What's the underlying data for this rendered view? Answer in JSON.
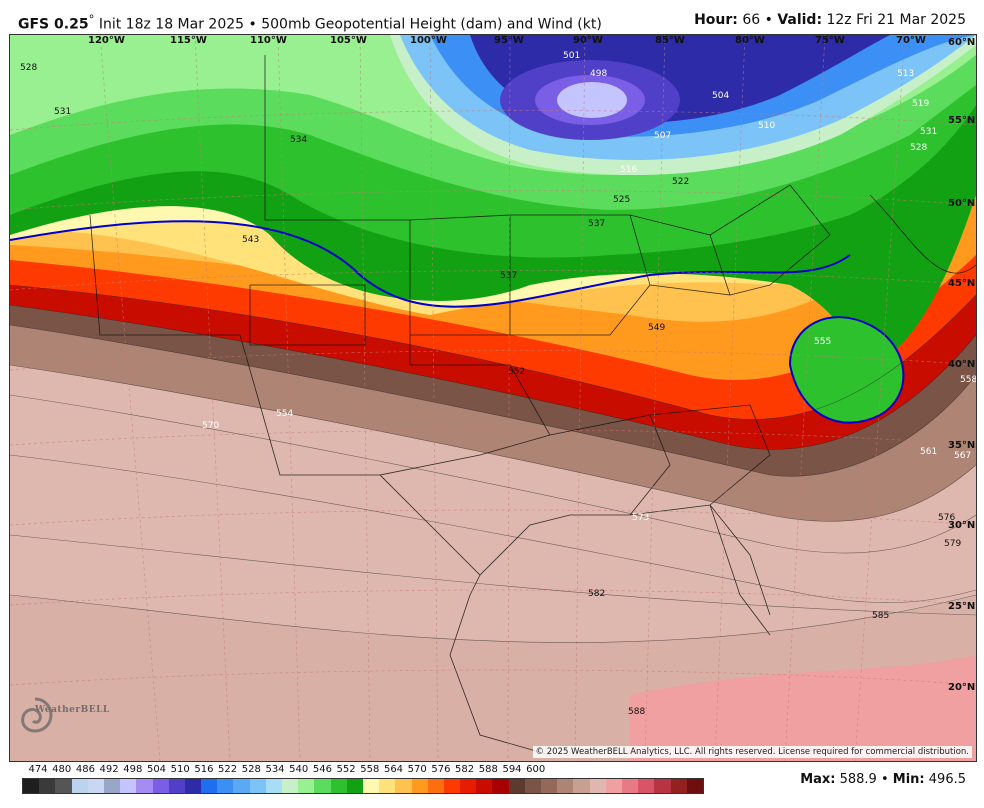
{
  "header": {
    "model": "GFS 0.25",
    "deg": "°",
    "init": " Init 18z 18 Mar 2025",
    "sep": " • ",
    "product": "500mb Geopotential Height (dam) and Wind (kt)",
    "hour_label": "Hour:",
    "hour": " 66",
    "valid_label": "Valid:",
    "valid": " 12z Fri 21 Mar 2025"
  },
  "map": {
    "longitudes": [
      "120°W",
      "115°W",
      "110°W",
      "105°W",
      "100°W",
      "95°W",
      "90°W",
      "85°W",
      "80°W",
      "75°W",
      "70°W"
    ],
    "latitudes": [
      "60°N",
      "55°N",
      "50°N",
      "45°N",
      "40°N",
      "35°N",
      "30°N",
      "25°N",
      "20°N"
    ],
    "contour_labels": [
      "528",
      "531",
      "534",
      "543",
      "537",
      "537",
      "549",
      "552",
      "554",
      "570",
      "501",
      "498",
      "504",
      "507",
      "510",
      "513",
      "516",
      "519",
      "522",
      "525",
      "528",
      "531",
      "555",
      "558",
      "561",
      "567",
      "573",
      "576",
      "579",
      "582",
      "585",
      "588"
    ],
    "copyright": "© 2025 WeatherBELL Analytics, LLC. All rights reserved. License required for commercial distribution.",
    "logo": "WeatherBELL"
  },
  "colorbar": {
    "ticks": [
      "474",
      "480",
      "486",
      "492",
      "498",
      "504",
      "510",
      "516",
      "522",
      "528",
      "534",
      "540",
      "546",
      "552",
      "558",
      "564",
      "570",
      "576",
      "582",
      "588",
      "594",
      "600"
    ],
    "colors": [
      "#1e1e1e",
      "#3a3a3a",
      "#555555",
      "#bcd3ef",
      "#c9d8f2",
      "#9aa6c8",
      "#c4c4ff",
      "#a48cf2",
      "#7a5ee6",
      "#5040c8",
      "#2d2ba8",
      "#1f6ef0",
      "#3c8ff5",
      "#5aa9f7",
      "#7cc3f8",
      "#a8ddf6",
      "#c8f0c8",
      "#98f090",
      "#5cdc5c",
      "#2ec12e",
      "#12a112",
      "#fff8b0",
      "#ffe27a",
      "#ffc24e",
      "#ff9a1e",
      "#ff6e0c",
      "#ff3a00",
      "#e81c00",
      "#c80c00",
      "#a80000",
      "#5c3a2e",
      "#7a5446",
      "#94685a",
      "#ae8474",
      "#c8a092",
      "#deb8ae",
      "#f0a0a0",
      "#e87a86",
      "#d85466",
      "#b83444",
      "#942020",
      "#6e0e0e"
    ]
  },
  "stats": {
    "max_label": "Max:",
    "max": " 588.9",
    "sep": " • ",
    "min_label": "Min:",
    "min": " 496.5"
  }
}
